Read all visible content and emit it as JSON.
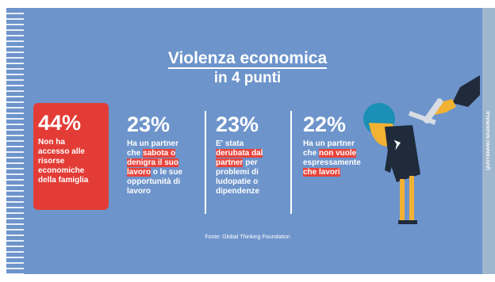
{
  "header": {
    "title": "Violenza economica",
    "subtitle": "in 4 punti"
  },
  "stats": [
    {
      "percent": "44%",
      "lines": [
        [
          {
            "text": "Non ha",
            "highlight": false
          }
        ],
        [
          {
            "text": "accesso alle",
            "highlight": false
          }
        ],
        [
          {
            "text": "risorse",
            "highlight": false
          }
        ],
        [
          {
            "text": "economiche",
            "highlight": false
          }
        ],
        [
          {
            "text": "della famiglia",
            "highlight": false
          }
        ]
      ]
    },
    {
      "percent": "23%",
      "lines": [
        [
          {
            "text": "Ha un partner",
            "highlight": false
          }
        ],
        [
          {
            "text": "che ",
            "highlight": false
          },
          {
            "text": "sabota o",
            "highlight": true
          }
        ],
        [
          {
            "text": "denigra il suo",
            "highlight": true
          }
        ],
        [
          {
            "text": "lavoro",
            "highlight": true
          },
          {
            "text": " o le sue",
            "highlight": false
          }
        ],
        [
          {
            "text": "opportunità di",
            "highlight": false
          }
        ],
        [
          {
            "text": "lavoro",
            "highlight": false
          }
        ]
      ]
    },
    {
      "percent": "23%",
      "lines": [
        [
          {
            "text": "E' stata",
            "highlight": false
          }
        ],
        [
          {
            "text": "derubata dal",
            "highlight": true
          }
        ],
        [
          {
            "text": "partner",
            "highlight": true
          },
          {
            "text": " per",
            "highlight": false
          }
        ],
        [
          {
            "text": "problemi di",
            "highlight": false
          }
        ],
        [
          {
            "text": "ludopatie o",
            "highlight": false
          }
        ],
        [
          {
            "text": "dipendenze",
            "highlight": false
          }
        ]
      ]
    },
    {
      "percent": "22%",
      "lines": [
        [
          {
            "text": "Ha un partner",
            "highlight": false
          }
        ],
        [
          {
            "text": "che ",
            "highlight": false
          },
          {
            "text": "non vuole",
            "highlight": true
          }
        ],
        [
          {
            "text": "espressamente",
            "highlight": false
          }
        ],
        [
          {
            "text": "che lavori",
            "highlight": true
          }
        ]
      ]
    }
  ],
  "source": "Fonte: Global Thinking Foundation",
  "brand": "QUOTIDIANO NAZIONALE"
}
